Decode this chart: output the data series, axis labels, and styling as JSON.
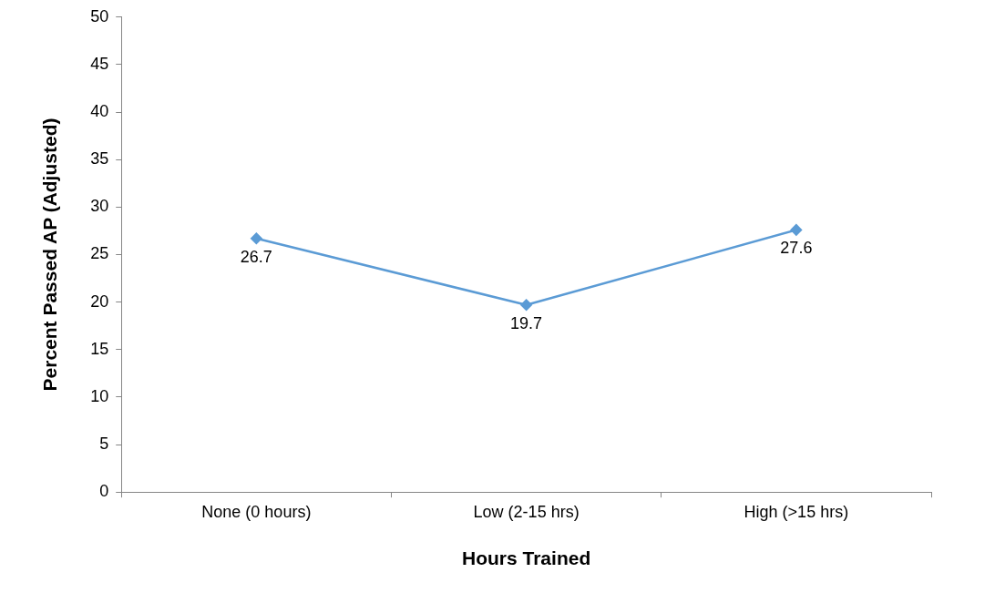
{
  "chart_data": {
    "type": "line",
    "xlabel": "Hours Trained",
    "ylabel": "Percent Passed AP (Adjusted)",
    "categories": [
      "None (0 hours)",
      "Low (2-15 hrs)",
      "High (>15 hrs)"
    ],
    "series": [
      {
        "color": "#5b9bd5",
        "values": [
          26.7,
          19.7,
          27.6
        ]
      }
    ],
    "ylim": [
      0,
      50
    ],
    "yticks": [
      0,
      5,
      10,
      15,
      20,
      25,
      30,
      35,
      40,
      45,
      50
    ],
    "grid": false,
    "legend": false,
    "marker": "diamond",
    "line_style": "solid",
    "data_labels": true
  }
}
